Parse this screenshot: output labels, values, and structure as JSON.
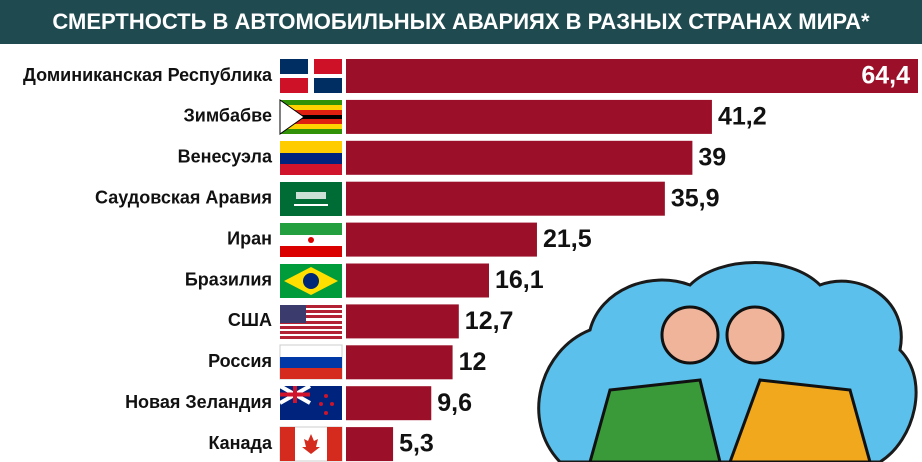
{
  "chart_data": {
    "type": "bar",
    "orientation": "horizontal",
    "title": "СМЕРТНОСТЬ В АВТОМОБИЛЬНЫХ АВАРИЯХ В РАЗНЫХ СТРАНАХ МИРА*",
    "categories": [
      "Доминиканская Республика",
      "Зимбабве",
      "Венесуэла",
      "Саудовская Аравия",
      "Иран",
      "Бразилия",
      "США",
      "Россия",
      "Новая Зеландия",
      "Канада"
    ],
    "values": [
      64.4,
      41.2,
      39,
      35.9,
      21.5,
      16.1,
      12.7,
      12,
      9.6,
      5.3
    ],
    "value_labels": [
      "64,4",
      "41,2",
      "39",
      "35,9",
      "21,5",
      "16,1",
      "12,7",
      "12",
      "9,6",
      "5,3"
    ],
    "color": "#9b1028"
  }
}
